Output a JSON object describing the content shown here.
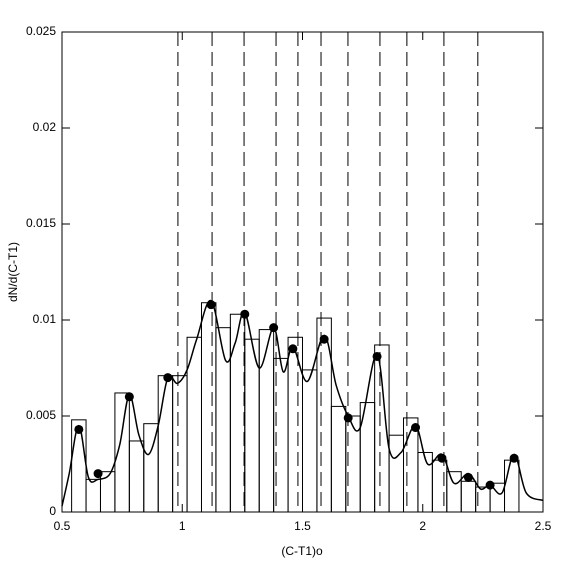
{
  "chart_data": {
    "type": "composite",
    "xlabel": "(C-T1)o",
    "ylabel": "dN/d(C-T1)",
    "xlim": [
      0.5,
      2.5
    ],
    "ylim": [
      0,
      0.025
    ],
    "xticks": [
      0.5,
      1,
      1.5,
      2,
      2.5
    ],
    "yticks": [
      0,
      0.005,
      0.01,
      0.015,
      0.02,
      0.025
    ],
    "color": "#000000",
    "layers": [
      {
        "type": "histogram",
        "bins": [
          0.54,
          0.6,
          0.66,
          0.72,
          0.78,
          0.84,
          0.9,
          0.96,
          1.02,
          1.08,
          1.14,
          1.2,
          1.26,
          1.32,
          1.38,
          1.44,
          1.5,
          1.56,
          1.62,
          1.68,
          1.74,
          1.8,
          1.86,
          1.92,
          1.98,
          2.04,
          2.1,
          2.16,
          2.22,
          2.28,
          2.34,
          2.4
        ],
        "values": [
          0.0048,
          0.0017,
          0.0021,
          0.0062,
          0.0037,
          0.0046,
          0.0071,
          0.0071,
          0.0091,
          0.0109,
          0.0096,
          0.0103,
          0.009,
          0.0095,
          0.008,
          0.0091,
          0.0074,
          0.0101,
          0.0055,
          0.005,
          0.0057,
          0.0087,
          0.004,
          0.0049,
          0.0031,
          0.0027,
          0.0021,
          0.0016,
          0.0013,
          0.0015,
          0.0027
        ]
      },
      {
        "type": "line",
        "x": [
          0.5,
          0.53,
          0.57,
          0.61,
          0.65,
          0.7,
          0.74,
          0.78,
          0.82,
          0.86,
          0.9,
          0.94,
          0.98,
          1.02,
          1.06,
          1.12,
          1.18,
          1.22,
          1.26,
          1.32,
          1.38,
          1.42,
          1.46,
          1.52,
          1.59,
          1.64,
          1.69,
          1.74,
          1.81,
          1.86,
          1.91,
          1.97,
          2.02,
          2.08,
          2.13,
          2.19,
          2.24,
          2.28,
          2.33,
          2.38,
          2.43,
          2.5
        ],
        "values": [
          0.0003,
          0.002,
          0.0045,
          0.0018,
          0.0017,
          0.002,
          0.0035,
          0.0061,
          0.004,
          0.003,
          0.0045,
          0.007,
          0.0067,
          0.0074,
          0.009,
          0.011,
          0.0079,
          0.0088,
          0.0104,
          0.0075,
          0.0096,
          0.0073,
          0.0086,
          0.0068,
          0.0092,
          0.0066,
          0.005,
          0.0044,
          0.0082,
          0.0033,
          0.0031,
          0.0045,
          0.0025,
          0.003,
          0.0015,
          0.002,
          0.0012,
          0.0014,
          0.001,
          0.003,
          0.001,
          0.0006
        ]
      },
      {
        "type": "scatter",
        "x": [
          0.57,
          0.65,
          0.78,
          0.94,
          1.12,
          1.26,
          1.38,
          1.46,
          1.59,
          1.69,
          1.81,
          1.97,
          2.08,
          2.19,
          2.28,
          2.38
        ],
        "values": [
          0.0043,
          0.002,
          0.006,
          0.007,
          0.0108,
          0.0103,
          0.0096,
          0.0085,
          0.009,
          0.0049,
          0.0081,
          0.0044,
          0.0028,
          0.0018,
          0.0014,
          0.0028
        ]
      },
      {
        "type": "vlines",
        "x": [
          0.982,
          1.124,
          1.257,
          1.39,
          1.481,
          1.577,
          1.689,
          1.822,
          1.934,
          2.088,
          2.229
        ]
      }
    ]
  }
}
